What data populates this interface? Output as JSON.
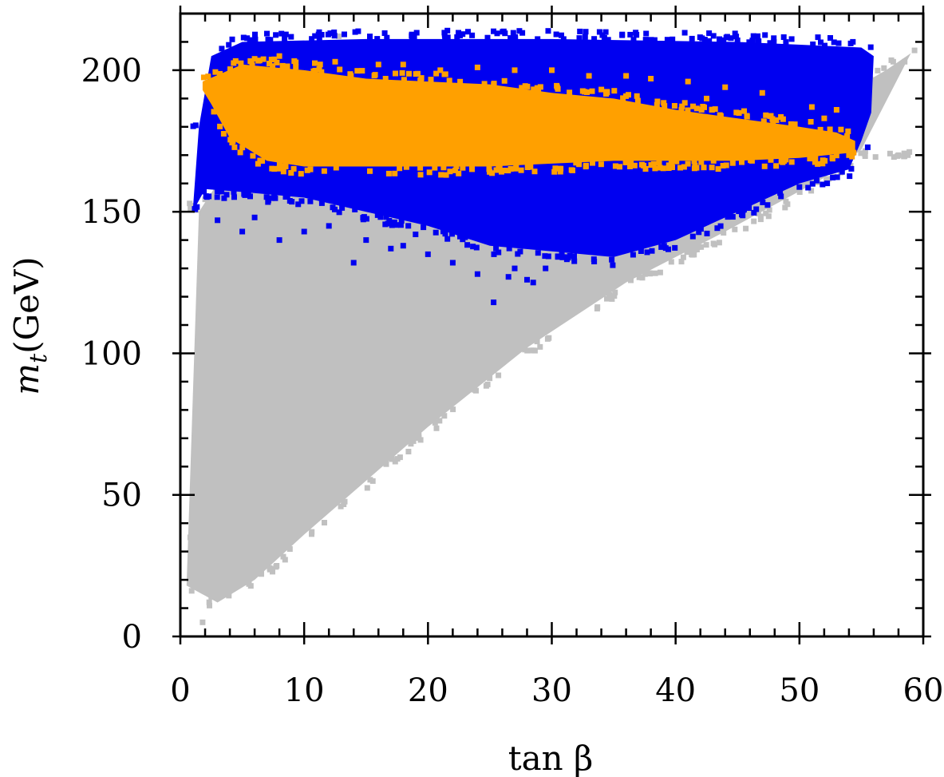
{
  "chart_data": {
    "type": "scatter",
    "title": "",
    "xlabel": "tan β",
    "ylabel": "m_t(GeV)",
    "ylabel_parts": {
      "symbol": "m",
      "subscript": "t",
      "unit": "(GeV)"
    },
    "xlim": [
      0,
      60
    ],
    "ylim": [
      0,
      220
    ],
    "xticks": [
      0,
      10,
      20,
      30,
      40,
      50,
      60
    ],
    "xtick_labels": [
      "0",
      "10",
      "20",
      "30",
      "40",
      "50",
      "60"
    ],
    "yticks": [
      0,
      50,
      100,
      150,
      200
    ],
    "ytick_labels": [
      "0",
      "50",
      "100",
      "150",
      "200"
    ],
    "x_minor_step": 2,
    "y_minor_step": 10,
    "grid": false,
    "legend": "none",
    "series": [
      {
        "color": "#c0c0c0",
        "region": {
          "upper": [
            [
              1.5,
              150
            ],
            [
              3,
              160
            ],
            [
              8,
              175
            ],
            [
              15,
              185
            ],
            [
              30,
              190
            ],
            [
              45,
              192
            ],
            [
              55,
              195
            ],
            [
              57,
              200
            ],
            [
              59,
              206
            ]
          ],
          "lower": [
            [
              0.5,
              18
            ],
            [
              3,
              12
            ],
            [
              6,
              20
            ],
            [
              10,
              36
            ],
            [
              20,
              74
            ],
            [
              28,
              102
            ],
            [
              36,
              125
            ],
            [
              44,
              143
            ],
            [
              52,
              162
            ],
            [
              55,
              172
            ]
          ]
        },
        "outliers": [
          [
            1.8,
            5
          ],
          [
            2.5,
            14
          ],
          [
            1.2,
            28
          ],
          [
            0.8,
            35
          ],
          [
            3.5,
            42
          ],
          [
            6,
            46
          ],
          [
            8.5,
            48
          ],
          [
            2.2,
            32
          ],
          [
            4.2,
            24
          ],
          [
            5.5,
            38
          ],
          [
            7,
            44
          ],
          [
            12.8,
            212
          ],
          [
            57.5,
            199
          ],
          [
            58.5,
            203
          ],
          [
            59.3,
            207
          ],
          [
            55.5,
            181
          ],
          [
            56.5,
            190
          ]
        ]
      },
      {
        "color": "#0000f0",
        "region": {
          "upper": [
            [
              1.5,
              180
            ],
            [
              2.5,
              205
            ],
            [
              5,
              210
            ],
            [
              15,
              211
            ],
            [
              30,
              211
            ],
            [
              45,
              210
            ],
            [
              55,
              208
            ],
            [
              56,
              205
            ],
            [
              55.8,
              185
            ]
          ],
          "lower": [
            [
              1,
              150
            ],
            [
              2,
              158
            ],
            [
              5,
              157
            ],
            [
              10,
              155
            ],
            [
              15,
              150
            ],
            [
              20,
              145
            ],
            [
              25,
              138
            ],
            [
              30,
              136
            ],
            [
              35,
              134
            ],
            [
              40,
              140
            ],
            [
              45,
              150
            ],
            [
              50,
              160
            ],
            [
              54,
              165
            ],
            [
              55,
              175
            ]
          ]
        },
        "outliers": [
          [
            3,
            147
          ],
          [
            5,
            143
          ],
          [
            8,
            140
          ],
          [
            12,
            145
          ],
          [
            15,
            140
          ],
          [
            18,
            138
          ],
          [
            20,
            135
          ],
          [
            22,
            132
          ],
          [
            24,
            128
          ],
          [
            25.3,
            118
          ],
          [
            26.5,
            127
          ],
          [
            28,
            126
          ],
          [
            29.5,
            130
          ],
          [
            14,
            132
          ],
          [
            17,
            137
          ],
          [
            27,
            130
          ],
          [
            23,
            141
          ],
          [
            19,
            142
          ],
          [
            10,
            143
          ],
          [
            6,
            148
          ],
          [
            31,
            134
          ],
          [
            28.5,
            125
          ]
        ]
      },
      {
        "color": "#ffa000",
        "region": {
          "upper": [
            [
              1.8,
              196
            ],
            [
              5,
              202
            ],
            [
              10,
              200
            ],
            [
              15,
              197
            ],
            [
              20,
              196
            ],
            [
              25,
              195
            ],
            [
              30,
              192
            ],
            [
              35,
              190
            ],
            [
              40,
              186
            ],
            [
              45,
              183
            ],
            [
              50,
              180
            ],
            [
              53,
              178
            ],
            [
              54.5,
              175
            ]
          ],
          "lower": [
            [
              54.5,
              171
            ],
            [
              50,
              169
            ],
            [
              45,
              168
            ],
            [
              40,
              168
            ],
            [
              35,
              168
            ],
            [
              30,
              167
            ],
            [
              25,
              166
            ],
            [
              20,
              166
            ],
            [
              15,
              166
            ],
            [
              10,
              166
            ],
            [
              7,
              168
            ],
            [
              4,
              176
            ],
            [
              2.5,
              188
            ],
            [
              1.8,
              193
            ]
          ]
        },
        "outliers": [
          [
            12.5,
            203
          ],
          [
            18,
            202
          ],
          [
            24,
            201
          ],
          [
            30,
            200
          ],
          [
            36,
            198
          ],
          [
            41,
            196
          ],
          [
            47,
            192
          ],
          [
            52,
            183
          ],
          [
            53,
            186
          ],
          [
            54,
            170
          ],
          [
            53.5,
            176
          ],
          [
            44,
            194
          ],
          [
            38,
            197
          ],
          [
            33,
            198
          ],
          [
            27,
            200
          ],
          [
            21,
            200
          ],
          [
            16,
            202
          ],
          [
            8,
            205
          ],
          [
            6,
            204
          ],
          [
            42.5,
            190
          ],
          [
            51,
            187
          ]
        ]
      }
    ]
  }
}
